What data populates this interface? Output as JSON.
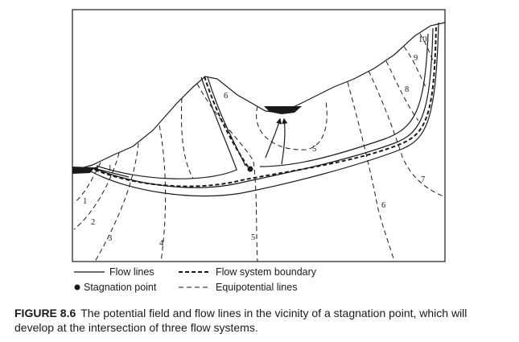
{
  "figure": {
    "legend": {
      "flow_lines": "Flow lines",
      "flow_system_boundary": "Flow system boundary",
      "stagnation_point": "Stagnation point",
      "equipotential_lines": "Equipotential lines"
    },
    "equipotential_labels": [
      "1",
      "2",
      "3",
      "4",
      "5",
      "5",
      "6",
      "6",
      "7",
      "8",
      "9",
      "10"
    ]
  },
  "caption": {
    "label": "FIGURE 8.6",
    "text": "The potential field and flow lines in the vicinity of a stagnation point, which will develop at the intersection of three flow systems."
  },
  "colors": {
    "ink": "#1a1a1a",
    "background": "#ffffff"
  }
}
